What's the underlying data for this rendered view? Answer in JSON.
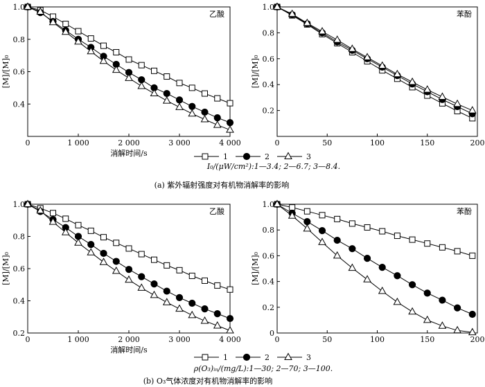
{
  "figure": {
    "caption_a": "(a)  紫外辐射强度对有机物消解率的影响",
    "caption_b": "(b)  O₃气体浓度对有机物消解率的影响",
    "condition_a": "I₀/(μW/cm²):1—3.4; 2—6.7; 3—8.4.",
    "condition_b": "ρ(O₃)ᵢₙ/(mg/L):1—30; 2—70; 3—100."
  },
  "legend": [
    {
      "marker": "square",
      "label": "1"
    },
    {
      "marker": "circle",
      "label": "2"
    },
    {
      "marker": "triangle",
      "label": "3"
    }
  ],
  "colors": {
    "line": "#000000",
    "open_fill": "#ffffff",
    "filled": "#000000"
  },
  "chart_data": [
    {
      "type": "line",
      "panel": "a-left",
      "annotation": "乙酸",
      "xlabel": "消解时间/s",
      "ylabel": "[M]/[M]₀",
      "xlim": [
        0,
        4000
      ],
      "ylim": [
        0.2,
        1.0
      ],
      "xticks": [
        0,
        1000,
        2000,
        3000,
        4000
      ],
      "xticklabels": [
        "0",
        "1 000",
        "2 000",
        "3 000",
        "4 000"
      ],
      "yticks": [
        0.2,
        0.4,
        0.6,
        0.8,
        1.0
      ],
      "yticklabels": [
        "",
        "0.4",
        "0.6",
        "0.8",
        "1.0"
      ],
      "x": [
        0,
        250,
        500,
        750,
        1000,
        1250,
        1500,
        1750,
        2000,
        2250,
        2500,
        2750,
        3000,
        3250,
        3500,
        3750,
        4000
      ],
      "series": [
        {
          "name": "1",
          "marker": "square",
          "values": [
            1.0,
            0.98,
            0.94,
            0.895,
            0.85,
            0.805,
            0.76,
            0.72,
            0.675,
            0.64,
            0.605,
            0.57,
            0.53,
            0.5,
            0.465,
            0.435,
            0.405
          ]
        },
        {
          "name": "2",
          "marker": "circle",
          "values": [
            1.0,
            0.965,
            0.91,
            0.855,
            0.8,
            0.75,
            0.695,
            0.645,
            0.595,
            0.55,
            0.5,
            0.465,
            0.425,
            0.385,
            0.35,
            0.315,
            0.285
          ]
        },
        {
          "name": "3",
          "marker": "triangle",
          "values": [
            1.0,
            0.97,
            0.905,
            0.845,
            0.785,
            0.725,
            0.665,
            0.61,
            0.56,
            0.51,
            0.465,
            0.42,
            0.38,
            0.34,
            0.305,
            0.27,
            0.24
          ]
        }
      ]
    },
    {
      "type": "line",
      "panel": "a-right",
      "annotation": "苯酚",
      "xlabel": "",
      "ylabel": "[M]/[M]₀",
      "xlim": [
        0,
        200
      ],
      "ylim": [
        0,
        1.0
      ],
      "xticks": [
        0,
        50,
        100,
        150,
        200
      ],
      "xticklabels": [
        "0",
        "50",
        "100",
        "150",
        "200"
      ],
      "yticks": [
        0.2,
        0.4,
        0.6,
        0.8,
        1.0
      ],
      "yticklabels": [
        "0.2",
        "0.4",
        "0.6",
        "0.8",
        "1.0"
      ],
      "x": [
        0,
        15,
        30,
        45,
        60,
        75,
        90,
        105,
        120,
        135,
        150,
        165,
        180,
        195
      ],
      "series": [
        {
          "name": "1",
          "marker": "square",
          "values": [
            1.0,
            0.935,
            0.865,
            0.79,
            0.72,
            0.65,
            0.58,
            0.51,
            0.445,
            0.38,
            0.315,
            0.255,
            0.195,
            0.14
          ]
        },
        {
          "name": "2",
          "marker": "circle",
          "values": [
            1.0,
            0.94,
            0.87,
            0.8,
            0.73,
            0.665,
            0.6,
            0.535,
            0.47,
            0.405,
            0.345,
            0.285,
            0.23,
            0.175
          ]
        },
        {
          "name": "3",
          "marker": "triangle",
          "values": [
            1.0,
            0.945,
            0.875,
            0.81,
            0.745,
            0.675,
            0.61,
            0.545,
            0.48,
            0.42,
            0.36,
            0.305,
            0.25,
            0.2
          ]
        }
      ]
    },
    {
      "type": "line",
      "panel": "b-left",
      "annotation": "乙酸",
      "xlabel": "消解时间/s",
      "ylabel": "[M]/[M]₀",
      "xlim": [
        0,
        4000
      ],
      "ylim": [
        0.2,
        1.0
      ],
      "xticks": [
        0,
        1000,
        2000,
        3000,
        4000
      ],
      "xticklabels": [
        "0",
        "1 000",
        "2 000",
        "3 000",
        "4 000"
      ],
      "yticks": [
        0.2,
        0.4,
        0.6,
        0.8,
        1.0
      ],
      "yticklabels": [
        "0.2",
        "0.4",
        "0.6",
        "0.8",
        "1.0"
      ],
      "x": [
        0,
        250,
        500,
        750,
        1000,
        1250,
        1500,
        1750,
        2000,
        2250,
        2500,
        2750,
        3000,
        3250,
        3500,
        3750,
        4000
      ],
      "series": [
        {
          "name": "1",
          "marker": "square",
          "values": [
            1.0,
            0.975,
            0.945,
            0.91,
            0.87,
            0.835,
            0.795,
            0.76,
            0.725,
            0.69,
            0.655,
            0.62,
            0.59,
            0.555,
            0.525,
            0.495,
            0.47
          ]
        },
        {
          "name": "2",
          "marker": "circle",
          "values": [
            1.0,
            0.955,
            0.905,
            0.855,
            0.8,
            0.75,
            0.695,
            0.645,
            0.595,
            0.55,
            0.505,
            0.46,
            0.42,
            0.385,
            0.35,
            0.32,
            0.29
          ]
        },
        {
          "name": "3",
          "marker": "triangle",
          "values": [
            1.0,
            0.96,
            0.89,
            0.825,
            0.76,
            0.7,
            0.64,
            0.585,
            0.53,
            0.48,
            0.435,
            0.39,
            0.35,
            0.31,
            0.275,
            0.245,
            0.215
          ]
        }
      ]
    },
    {
      "type": "line",
      "panel": "b-right",
      "annotation": "苯酚",
      "xlabel": "",
      "ylabel": "[M]/[M]₀",
      "xlim": [
        0,
        200
      ],
      "ylim": [
        0,
        1.0
      ],
      "xticks": [
        0,
        50,
        100,
        150,
        200
      ],
      "xticklabels": [
        "0",
        "50",
        "100",
        "150",
        "200"
      ],
      "yticks": [
        0,
        0.2,
        0.4,
        0.6,
        0.8,
        1.0
      ],
      "yticklabels": [
        "0",
        "0.2",
        "0.4",
        "0.6",
        "0.8",
        "1.0"
      ],
      "x": [
        0,
        15,
        30,
        45,
        60,
        75,
        90,
        105,
        120,
        135,
        150,
        165,
        180,
        195
      ],
      "series": [
        {
          "name": "1",
          "marker": "square",
          "values": [
            1.0,
            0.975,
            0.945,
            0.915,
            0.885,
            0.85,
            0.82,
            0.79,
            0.755,
            0.725,
            0.695,
            0.665,
            0.635,
            0.6
          ]
        },
        {
          "name": "2",
          "marker": "circle",
          "values": [
            1.0,
            0.93,
            0.865,
            0.795,
            0.72,
            0.655,
            0.58,
            0.51,
            0.445,
            0.375,
            0.31,
            0.255,
            0.195,
            0.145
          ]
        },
        {
          "name": "3",
          "marker": "triangle",
          "values": [
            1.0,
            0.91,
            0.81,
            0.705,
            0.6,
            0.505,
            0.415,
            0.325,
            0.24,
            0.165,
            0.1,
            0.055,
            0.02,
            0.005
          ]
        }
      ]
    }
  ]
}
